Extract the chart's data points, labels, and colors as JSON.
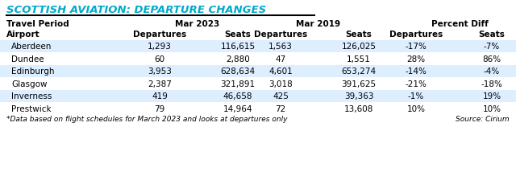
{
  "title": "SCOTTISH AVIATION: DEPARTURE CHANGES",
  "title_color": "#00aacc",
  "bg_color": "#ffffff",
  "shade_color": "#ddeeff",
  "airports": [
    "Aberdeen",
    "Dundee",
    "Edinburgh",
    "Glasgow",
    "Inverness",
    "Prestwick"
  ],
  "mar2023_dep": [
    "1,293",
    "60",
    "3,953",
    "2,387",
    "419",
    "79"
  ],
  "mar2023_seats": [
    "116,615",
    "2,880",
    "628,634",
    "321,891",
    "46,658",
    "14,964"
  ],
  "mar2019_dep": [
    "1,563",
    "47",
    "4,601",
    "3,018",
    "425",
    "72"
  ],
  "mar2019_seats": [
    "126,025",
    "1,551",
    "653,274",
    "391,625",
    "39,363",
    "13,608"
  ],
  "pct_dep": [
    "-17%",
    "28%",
    "-14%",
    "-21%",
    "-1%",
    "10%"
  ],
  "pct_seats": [
    "-7%",
    "86%",
    "-4%",
    "-18%",
    "19%",
    "10%"
  ],
  "footnote": "*Data based on flight schedules for March 2023 and looks at departures only",
  "source": "Source: Cirium",
  "shaded_rows": [
    0,
    2,
    4
  ]
}
